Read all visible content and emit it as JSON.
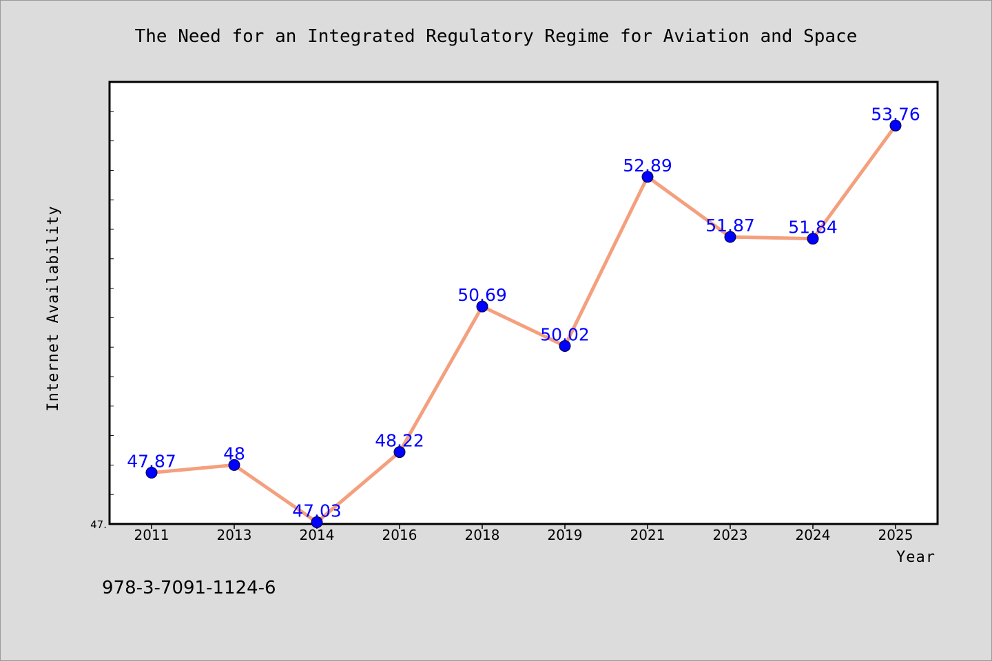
{
  "chart_data": {
    "type": "line",
    "title": "The Need for an Integrated Regulatory Regime for Aviation and Space",
    "xlabel": "Year",
    "ylabel": "Internet Availability",
    "categories": [
      "2011",
      "2013",
      "2014",
      "2016",
      "2018",
      "2019",
      "2021",
      "2023",
      "2024",
      "2025"
    ],
    "values": [
      47.87,
      48,
      47.03,
      48.22,
      50.69,
      50.02,
      52.89,
      51.87,
      51.84,
      53.76
    ],
    "data_labels": [
      "47.87",
      "48",
      "47.03",
      "48.22",
      "50.69",
      "50.02",
      "52.89",
      "51.87",
      "51.84",
      "53.76"
    ],
    "ylim": [
      47,
      54.5
    ],
    "y_tick_label": "47.",
    "grid": false,
    "colors": {
      "line": "#f4a07e",
      "marker": "#0000ff",
      "label": "#0000ff"
    }
  },
  "footer": {
    "isbn": "978-3-7091-1124-6"
  }
}
